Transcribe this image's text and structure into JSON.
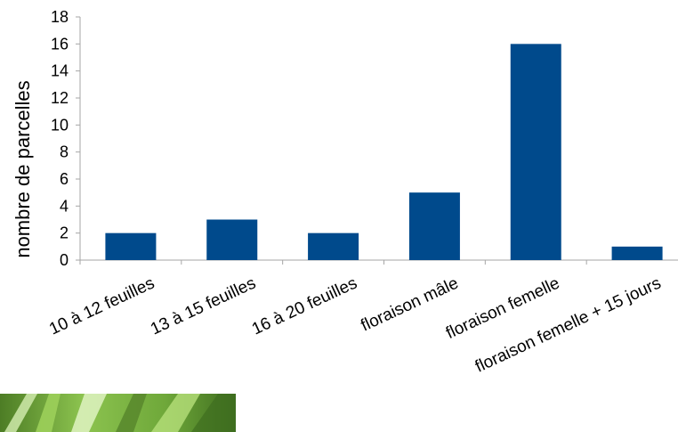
{
  "chart_data": {
    "type": "bar",
    "categories": [
      "10 à 12 feuilles",
      "13 à 15 feuilles",
      "16 à 20  feuilles",
      "floraison mâle",
      "floraison femelle",
      "floraison femelle + 15 jours"
    ],
    "values": [
      2,
      3,
      2,
      5,
      16,
      1
    ],
    "xlabel": "",
    "ylabel": "nombre  de parcelles",
    "ylim": [
      0,
      18
    ],
    "yticks": [
      0,
      2,
      4,
      6,
      8,
      10,
      12,
      14,
      16,
      18
    ],
    "grid": false,
    "legend": "none",
    "bar_color": "#004a8c",
    "axis_color": "#a6a6a6"
  },
  "photo": {
    "icon": "corn-leaves-photo",
    "colors": [
      "#5a8a2e",
      "#9ccf5a",
      "#d6efb3",
      "#3f6e1f"
    ]
  }
}
